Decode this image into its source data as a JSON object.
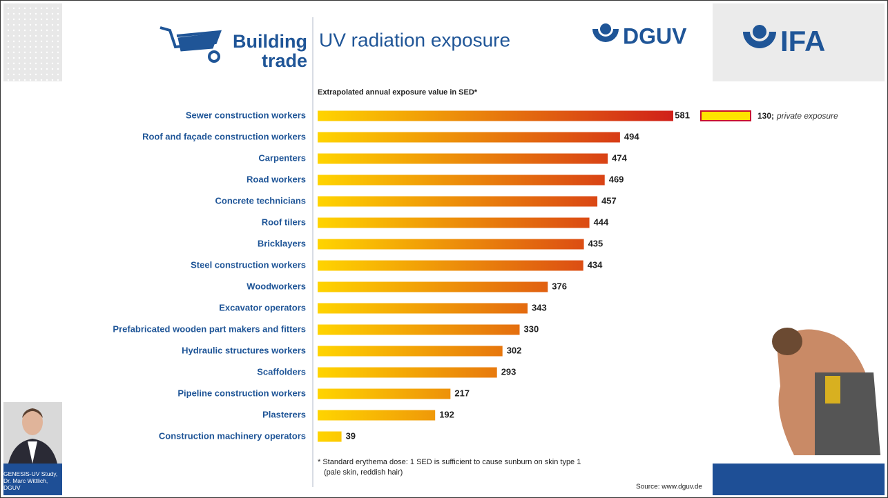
{
  "header": {
    "trade_line1": "Building",
    "trade_line2": "trade",
    "logo1": "DGUV",
    "logo2": "IFA"
  },
  "chart_data": {
    "type": "bar",
    "orientation": "horizontal",
    "title": "UV radiation exposure",
    "subtitle": "Extrapolated annual exposure value in SED*",
    "categories": [
      "Sewer construction workers",
      "Roof and façade construction workers",
      "Carpenters",
      "Road workers",
      "Concrete technicians",
      "Roof tilers",
      "Bricklayers",
      "Steel construction workers",
      "Woodworkers",
      "Excavator operators",
      "Prefabricated wooden part makers and fitters",
      "Hydraulic structures workers",
      "Scaffolders",
      "Pipeline construction workers",
      "Plasterers",
      "Construction machinery operators"
    ],
    "values": [
      581,
      494,
      474,
      469,
      457,
      444,
      435,
      434,
      376,
      343,
      330,
      302,
      293,
      217,
      192,
      39
    ],
    "colors": [
      "#ffd400",
      "#d0201a"
    ],
    "annotation": {
      "label": "130;",
      "text": "private exposure"
    },
    "footnote_line1": "* Standard erythema dose: 1 SED is sufficient to cause sunburn on skin type 1",
    "footnote_line2": "(pale skin, reddish hair)",
    "source": "Source: www.dguv.de"
  },
  "caption": "GENESIS-UV Study, Dr. Marc Wittlich, DGUV"
}
